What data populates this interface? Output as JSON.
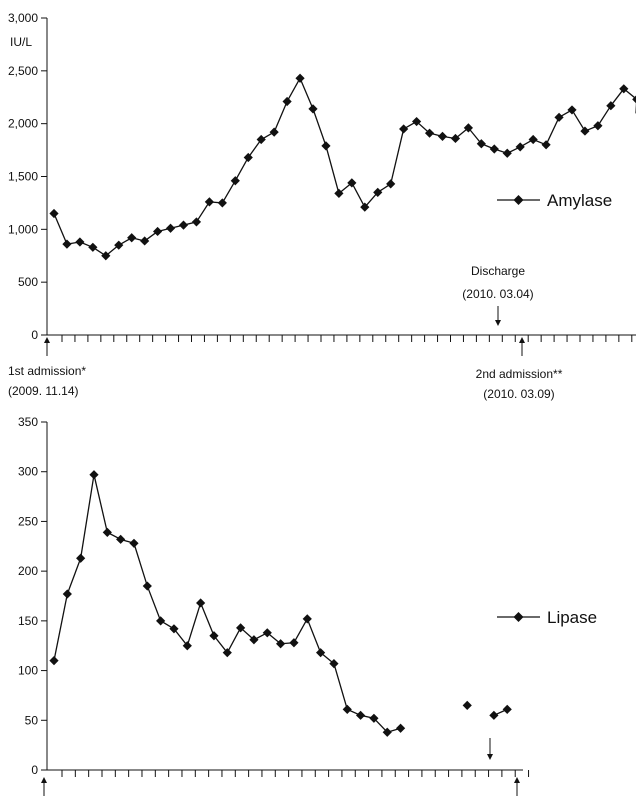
{
  "chart_data": [
    {
      "type": "line",
      "title": "",
      "xlabel": "",
      "ylabel": "IU/L",
      "ylim": [
        0,
        3000
      ],
      "yticks": [
        0,
        500,
        1000,
        1500,
        2000,
        2500,
        3000
      ],
      "ytick_labels": [
        "0",
        "500",
        "1,000",
        "1,500",
        "2,000",
        "2,500",
        "3,000"
      ],
      "x_tick_count": 46,
      "legend": "right",
      "series": [
        {
          "name": "Amylase",
          "x": [
            0,
            1,
            2,
            3,
            4,
            5,
            6,
            7,
            8,
            9,
            10,
            11,
            12,
            13,
            14,
            15,
            16,
            17,
            18,
            19,
            20,
            21,
            22,
            23,
            24,
            25,
            26,
            27,
            28,
            29,
            30,
            31,
            32,
            33,
            34,
            35,
            36,
            37,
            38,
            39,
            40,
            41,
            42,
            43,
            44,
            45,
            46,
            47
          ],
          "values": [
            1150,
            860,
            880,
            830,
            750,
            850,
            920,
            890,
            980,
            1010,
            1040,
            1070,
            1260,
            1250,
            1460,
            1680,
            1850,
            1920,
            2210,
            2430,
            2140,
            1790,
            1340,
            1440,
            1210,
            1350,
            1430,
            1950,
            2020,
            1910,
            1880,
            1860,
            1960,
            1810,
            1760,
            1720,
            1780,
            1850,
            1800,
            2060,
            2130,
            1930,
            1980,
            2170,
            2330,
            2230,
            null,
            null
          ],
          "connect_last_to_edge": true
        }
      ],
      "annotations": [
        {
          "label_lines": [
            "Discharge",
            "(2010. 03.04)"
          ],
          "x": 34,
          "arrow": "down"
        },
        {
          "label_lines": [
            "1st admission*",
            "(2009. 11.14)"
          ],
          "x": -0.2,
          "arrow": "up"
        },
        {
          "label_lines": [
            "2nd admission**",
            "(2010. 03.09)"
          ],
          "x": 36,
          "arrow": "up"
        }
      ]
    },
    {
      "type": "line",
      "title": "",
      "xlabel": "",
      "ylabel": "",
      "ylim": [
        0,
        350
      ],
      "yticks": [
        0,
        50,
        100,
        150,
        200,
        250,
        300,
        350
      ],
      "ytick_labels": [
        "0",
        "50",
        "100",
        "150",
        "200",
        "250",
        "300",
        "350"
      ],
      "x_tick_count": 36,
      "legend": "right",
      "series": [
        {
          "name": "Lipase",
          "x": [
            0,
            1,
            2,
            3,
            4,
            5,
            6,
            7,
            8,
            9,
            10,
            11,
            12,
            13,
            14,
            15,
            16,
            17,
            18,
            19,
            20,
            21,
            22,
            23,
            24,
            25,
            26,
            27,
            28,
            29,
            30,
            31,
            32,
            33,
            34,
            35
          ],
          "values": [
            110,
            177,
            213,
            297,
            239,
            232,
            228,
            185,
            150,
            142,
            125,
            168,
            135,
            118,
            143,
            131,
            138,
            127,
            128,
            152,
            118,
            107,
            61,
            55,
            52,
            38,
            42,
            null,
            null,
            null,
            null,
            65,
            null,
            55,
            61,
            null
          ]
        }
      ],
      "annotations": [
        {
          "label_lines": [],
          "x": 33,
          "arrow": "down"
        },
        {
          "label_lines": [],
          "x": -0.2,
          "arrow": "up"
        },
        {
          "label_lines": [],
          "x": 35,
          "arrow": "up"
        }
      ]
    }
  ]
}
